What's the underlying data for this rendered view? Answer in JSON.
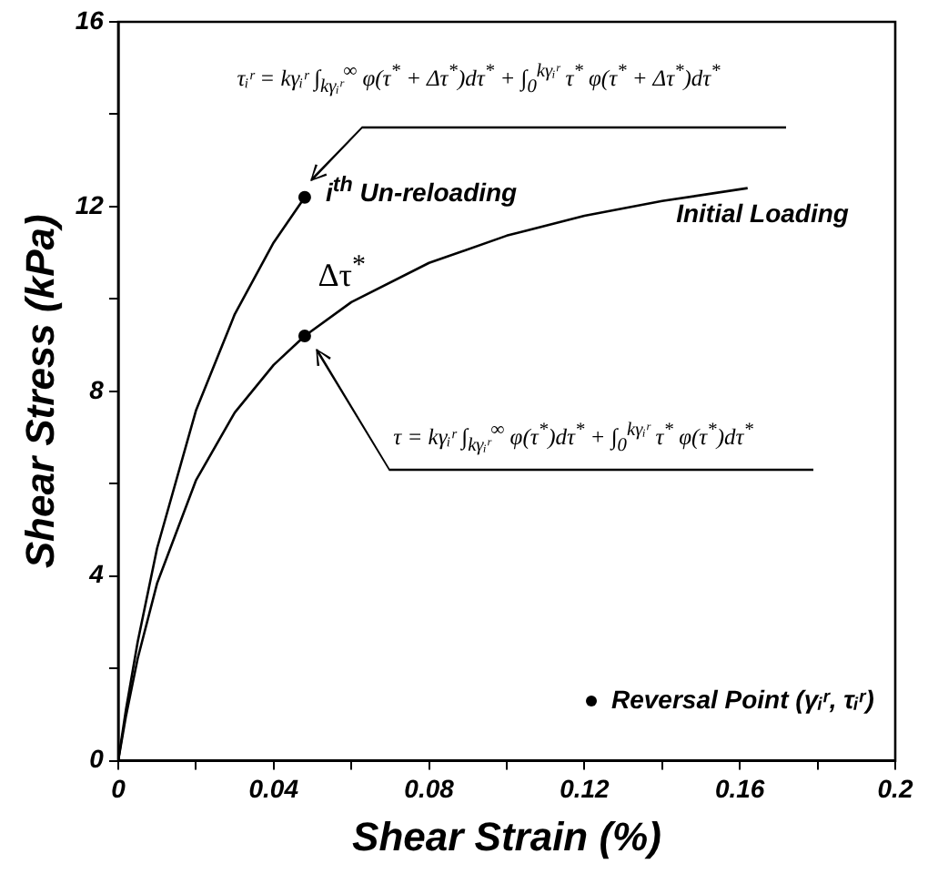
{
  "chart_data": {
    "type": "line",
    "xlabel": "Shear Strain (%)",
    "ylabel": "Shear Stress (kPa)",
    "xlim": [
      0,
      0.2
    ],
    "ylim": [
      0,
      16
    ],
    "xticks": [
      0,
      {
        "value": 0.02,
        "label": null
      },
      0.04,
      {
        "value": 0.06,
        "label": null
      },
      0.08,
      {
        "value": 0.1,
        "label": null
      },
      0.12,
      {
        "value": 0.14,
        "label": null
      },
      0.16,
      {
        "value": 0.18,
        "label": null
      },
      0.2
    ],
    "yticks": [
      0,
      {
        "value": 2,
        "label": null
      },
      4,
      {
        "value": 6,
        "label": null
      },
      8,
      {
        "value": 10,
        "label": null
      },
      12,
      {
        "value": 14,
        "label": null
      },
      16
    ],
    "grid": false,
    "legend": "bottom right",
    "marker": "none",
    "line_style": "solid",
    "series": [
      {
        "type": "line",
        "color": "#000000",
        "x": [
          0,
          0.002,
          0.005,
          0.01,
          0.02,
          0.03,
          0.04,
          0.048,
          0.06,
          0.08,
          0.1,
          0.12,
          0.14,
          0.162
        ],
        "values": [
          0,
          0.97,
          2.21,
          3.84,
          6.07,
          7.54,
          8.57,
          9.2,
          9.93,
          10.78,
          11.37,
          11.8,
          12.12,
          12.4
        ]
      },
      {
        "type": "line",
        "color": "#000000",
        "x": [
          0,
          0.002,
          0.005,
          0.01,
          0.02,
          0.03,
          0.04,
          0.048
        ],
        "values": [
          0,
          1.11,
          2.57,
          4.6,
          7.58,
          9.67,
          11.22,
          12.2
        ]
      },
      {
        "type": "scatter",
        "name": "Reversal Point (γᵢʳ, τᵢʳ)",
        "color": "#000000",
        "marker": "circle",
        "x": [
          0.048,
          0.048
        ],
        "values": [
          12.2,
          9.2
        ]
      }
    ],
    "annotations": [
      "τᵢʳ = kγᵢʳ ∫$_{kγᵢʳ}$$^{∞}$ φ(τ$^{*}$ + Δτ$^{*}$)dτ$^{*}$ + ∫$_{0}$$^{kγᵢʳ}$ τ$^{*}$ φ(τ$^{*}$ + Δτ$^{*}$)dτ$^{*}$",
      "τ = kγᵢʳ ∫$_{kγᵢʳ}$$^{∞}$ φ(τ$^{*}$)dτ$^{*}$ + ∫$_{0}$$^{kγᵢʳ}$ τ$^{*}$ φ(τ$^{*}$)dτ$^{*}$",
      "i$^{th}$ Un-reloading",
      "Initial Loading",
      "Δτ$^{*}$"
    ]
  }
}
